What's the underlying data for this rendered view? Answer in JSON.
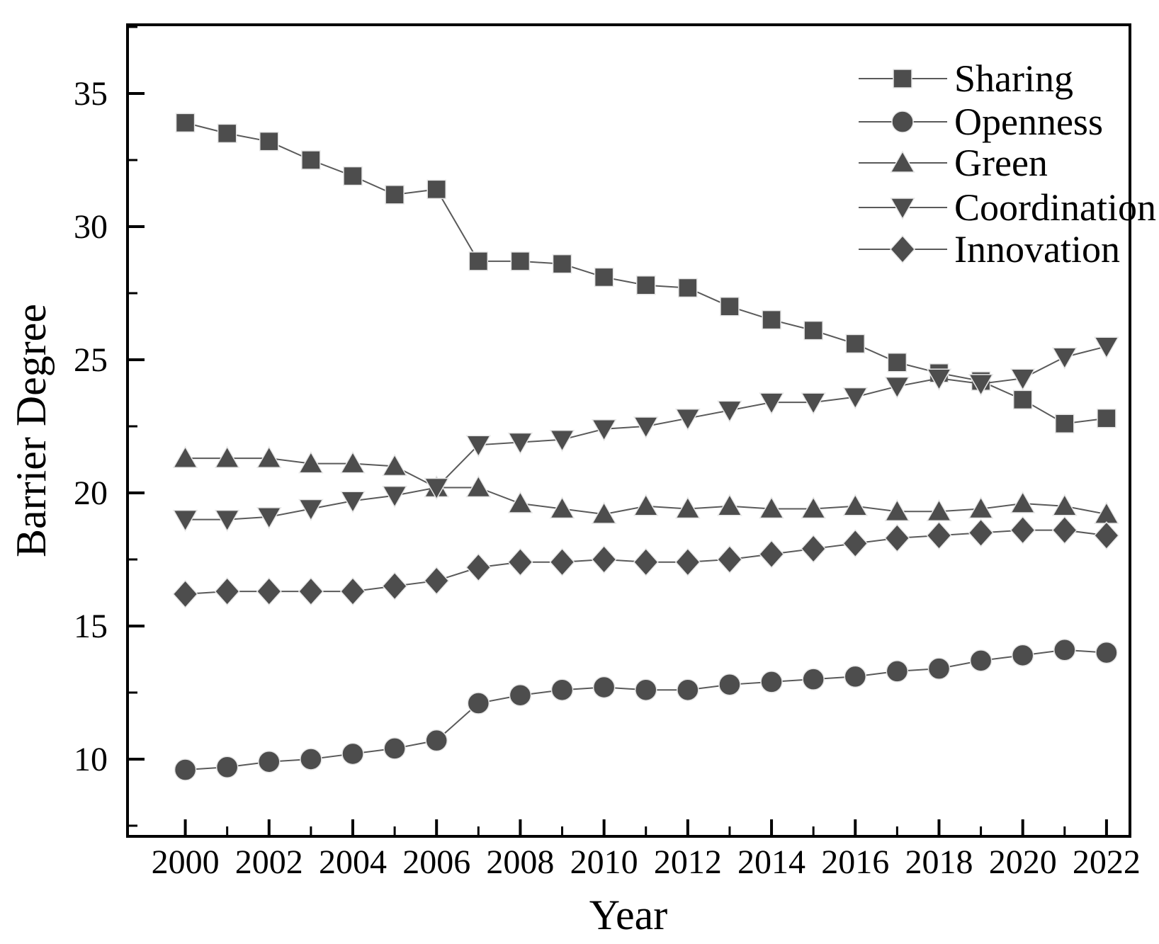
{
  "chart_data": {
    "type": "line",
    "title": "",
    "xlabel": "Year",
    "ylabel": "Barrier Degree",
    "x": [
      2000,
      2001,
      2002,
      2003,
      2004,
      2005,
      2006,
      2007,
      2008,
      2009,
      2010,
      2011,
      2012,
      2013,
      2014,
      2015,
      2016,
      2017,
      2018,
      2019,
      2020,
      2021,
      2022
    ],
    "series": [
      {
        "name": "Sharing",
        "marker": "square",
        "values": [
          33.9,
          33.5,
          33.2,
          32.5,
          31.9,
          31.2,
          31.4,
          28.7,
          28.7,
          28.6,
          28.1,
          27.8,
          27.7,
          27.0,
          26.5,
          26.1,
          25.6,
          24.9,
          24.5,
          24.2,
          23.5,
          22.6,
          22.8
        ]
      },
      {
        "name": "Openness",
        "marker": "circle",
        "values": [
          9.6,
          9.7,
          9.9,
          10.0,
          10.2,
          10.4,
          10.7,
          12.1,
          12.4,
          12.6,
          12.7,
          12.6,
          12.6,
          12.8,
          12.9,
          13.0,
          13.1,
          13.3,
          13.4,
          13.7,
          13.9,
          14.1,
          14.0
        ]
      },
      {
        "name": "Green",
        "marker": "triangle-up",
        "values": [
          21.3,
          21.3,
          21.3,
          21.1,
          21.1,
          21.0,
          20.2,
          20.2,
          19.6,
          19.4,
          19.2,
          19.5,
          19.4,
          19.5,
          19.4,
          19.4,
          19.5,
          19.3,
          19.3,
          19.4,
          19.6,
          19.5,
          19.2
        ]
      },
      {
        "name": "Coordination",
        "marker": "triangle-down",
        "values": [
          19.0,
          19.0,
          19.1,
          19.4,
          19.7,
          19.9,
          20.2,
          21.8,
          21.9,
          22.0,
          22.4,
          22.5,
          22.8,
          23.1,
          23.4,
          23.4,
          23.6,
          24.0,
          24.3,
          24.1,
          24.3,
          25.1,
          25.5
        ]
      },
      {
        "name": "Innovation",
        "marker": "diamond",
        "values": [
          16.2,
          16.3,
          16.3,
          16.3,
          16.3,
          16.5,
          16.7,
          17.2,
          17.4,
          17.4,
          17.5,
          17.4,
          17.4,
          17.5,
          17.7,
          17.9,
          18.1,
          18.3,
          18.4,
          18.5,
          18.6,
          18.6,
          18.4
        ]
      }
    ],
    "x_tick_labels": [
      "2000",
      "2002",
      "2004",
      "2006",
      "2008",
      "2010",
      "2012",
      "2014",
      "2016",
      "2018",
      "2020",
      "2022"
    ],
    "x_ticks_major": [
      2000,
      2002,
      2004,
      2006,
      2008,
      2010,
      2012,
      2014,
      2016,
      2018,
      2020,
      2022
    ],
    "x_ticks_minor": [
      2001,
      2003,
      2005,
      2007,
      2009,
      2011,
      2013,
      2015,
      2017,
      2019,
      2021
    ],
    "y_tick_labels": [
      "10",
      "15",
      "20",
      "25",
      "30",
      "35"
    ],
    "y_ticks_major": [
      10,
      15,
      20,
      25,
      30,
      35
    ],
    "y_ticks_minor": [
      7.5,
      12.5,
      17.5,
      22.5,
      27.5,
      32.5,
      37.5
    ],
    "xlim": [
      1998.62,
      2022.56
    ],
    "ylim": [
      7.1,
      37.58
    ],
    "grid": false,
    "legend_position": "top-right-inside",
    "colors": {
      "marker_fill": "#4d4d4d",
      "marker_edge": "#e6e6e6",
      "line": "#5a5a5a",
      "axis": "#000000",
      "text": "#000000",
      "background": "#ffffff"
    }
  }
}
